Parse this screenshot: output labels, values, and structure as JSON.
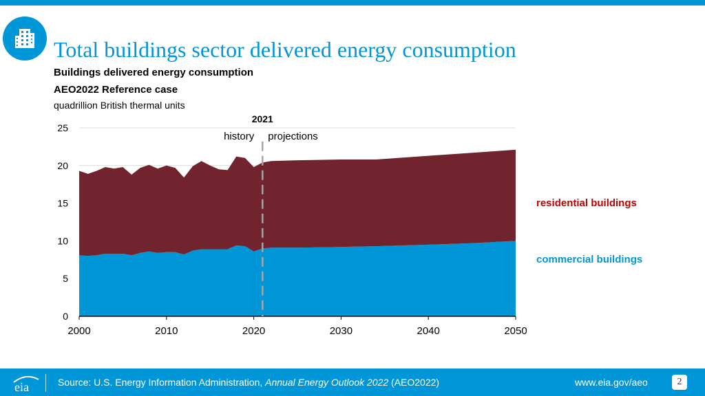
{
  "header": {
    "title": "Total buildings sector delivered energy consumption",
    "subtitle1": "Buildings delivered energy consumption",
    "subtitle2": "AEO2022 Reference case",
    "unit": "quadrillion British thermal units",
    "icon": "building-icon"
  },
  "colors": {
    "accent": "#0096d7",
    "residential": "#71242e",
    "commercial": "#0096d7",
    "residential_label": "#c00000",
    "divider": "#a6a6a6",
    "grid": "#d9d9d9"
  },
  "chart_data": {
    "type": "area",
    "stacked": true,
    "title": "Buildings delivered energy consumption",
    "ylabel": "quadrillion British thermal units",
    "xlim": [
      2000,
      2050
    ],
    "ylim": [
      0,
      25
    ],
    "x_ticks": [
      2000,
      2010,
      2020,
      2030,
      2040,
      2050
    ],
    "y_ticks": [
      0,
      5,
      10,
      15,
      20,
      25
    ],
    "divider": {
      "year": 2021,
      "label": "2021",
      "left_label": "history",
      "right_label": "projections"
    },
    "x": [
      2000,
      2001,
      2002,
      2003,
      2004,
      2005,
      2006,
      2007,
      2008,
      2009,
      2010,
      2011,
      2012,
      2013,
      2014,
      2015,
      2016,
      2017,
      2018,
      2019,
      2020,
      2021,
      2022,
      2025,
      2030,
      2034,
      2040,
      2045,
      2050
    ],
    "series": [
      {
        "name": "commercial buildings",
        "values": [
          8.1,
          8.0,
          8.1,
          8.3,
          8.3,
          8.3,
          8.1,
          8.4,
          8.6,
          8.4,
          8.5,
          8.5,
          8.2,
          8.7,
          8.9,
          8.9,
          8.9,
          8.9,
          9.4,
          9.3,
          8.6,
          9.0,
          9.1,
          9.1,
          9.2,
          9.3,
          9.5,
          9.7,
          10.0
        ]
      },
      {
        "name": "residential buildings",
        "values": [
          11.2,
          10.9,
          11.2,
          11.5,
          11.3,
          11.5,
          10.7,
          11.3,
          11.5,
          11.2,
          11.5,
          11.2,
          10.2,
          11.2,
          11.7,
          11.1,
          10.6,
          10.5,
          11.8,
          11.7,
          11.2,
          11.4,
          11.5,
          11.6,
          11.6,
          11.5,
          11.8,
          12.0,
          12.1
        ]
      }
    ]
  },
  "legend": {
    "residential": "residential buildings",
    "commercial": "commercial buildings"
  },
  "footer": {
    "source_prefix": "Source: U.S. Energy Information Administration, ",
    "source_title": "Annual Energy Outlook 2022",
    "source_suffix": " (AEO2022)",
    "site": "www.eia.gov/aeo",
    "page": "2",
    "logo_text": "eia"
  }
}
